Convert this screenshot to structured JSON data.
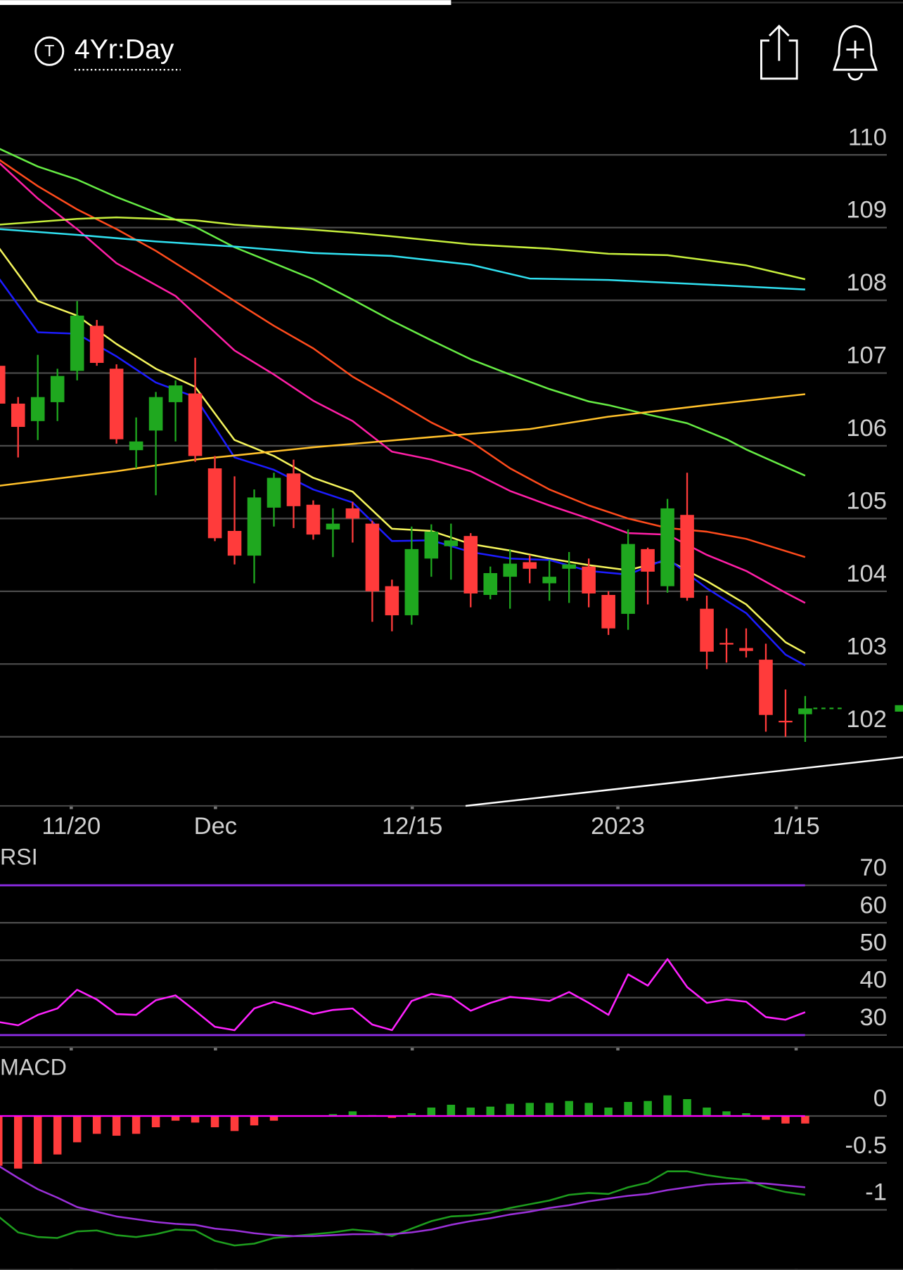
{
  "header": {
    "symbol_icon": "T",
    "timeframe": "4Yr:Day"
  },
  "chart_data": [
    {
      "type": "candlestick",
      "xlim": [
        0.08,
        45.97
      ],
      "ylim": [
        101.05,
        110.68
      ],
      "yticks": [
        102,
        103,
        104,
        105,
        106,
        107,
        108,
        109,
        110
      ],
      "xticks": [
        {
          "value": 3.7,
          "label": "11/20"
        },
        {
          "value": 11.03,
          "label": "Dec"
        },
        {
          "value": 21.03,
          "label": "12/15"
        },
        {
          "value": 31.48,
          "label": "2023"
        },
        {
          "value": 40.54,
          "label": "1/15"
        }
      ],
      "grid": true,
      "up_color": "#1fa81f",
      "down_color": "#ff3b3b",
      "x": [
        0,
        1,
        2,
        3,
        4,
        5,
        6,
        7,
        8,
        9,
        10,
        11,
        12,
        13,
        14,
        15,
        16,
        17,
        18,
        19,
        20,
        21,
        22,
        23,
        24,
        25,
        26,
        27,
        28,
        29,
        30,
        31,
        32,
        33,
        34,
        35,
        36,
        37,
        38,
        39,
        40,
        41
      ],
      "open": [
        107.1,
        106.58,
        106.34,
        106.6,
        107.03,
        107.65,
        107.06,
        105.94,
        106.21,
        106.6,
        106.72,
        105.69,
        104.83,
        104.49,
        105.15,
        105.62,
        105.19,
        104.85,
        105.14,
        104.93,
        104.07,
        103.67,
        104.45,
        104.62,
        104.76,
        103.95,
        104.2,
        104.4,
        104.11,
        104.31,
        104.34,
        103.95,
        103.69,
        104.58,
        104.07,
        105.05,
        103.76,
        103.29,
        103.22,
        103.06,
        102.22,
        102.31
      ],
      "high": [
        107.2,
        106.67,
        107.25,
        107.06,
        107.99,
        107.73,
        107.12,
        106.39,
        106.74,
        106.9,
        107.21,
        105.86,
        105.58,
        105.4,
        105.63,
        105.81,
        105.25,
        105.14,
        105.23,
        104.97,
        104.16,
        104.89,
        104.92,
        104.93,
        104.8,
        104.34,
        104.58,
        104.5,
        104.43,
        104.54,
        104.45,
        104.0,
        104.85,
        104.6,
        105.27,
        105.63,
        103.94,
        103.49,
        103.49,
        103.28,
        102.65,
        102.56
      ],
      "low": [
        105.45,
        105.84,
        106.08,
        106.34,
        106.9,
        107.1,
        106.03,
        105.69,
        105.32,
        106.06,
        105.78,
        104.69,
        104.37,
        104.11,
        104.89,
        104.87,
        104.71,
        104.47,
        104.67,
        103.58,
        103.45,
        103.54,
        104.2,
        104.16,
        103.78,
        103.89,
        103.76,
        104.11,
        103.87,
        103.84,
        103.78,
        103.4,
        103.47,
        103.82,
        103.98,
        103.87,
        102.93,
        103.02,
        103.09,
        102.07,
        102.0,
        101.93
      ],
      "close": [
        106.58,
        106.26,
        106.67,
        106.96,
        107.79,
        107.14,
        106.09,
        106.06,
        106.67,
        106.83,
        105.86,
        104.73,
        104.49,
        105.29,
        105.56,
        105.17,
        104.78,
        104.93,
        105.0,
        104.0,
        103.67,
        104.58,
        104.82,
        104.7,
        103.97,
        104.25,
        104.38,
        104.31,
        104.2,
        104.37,
        103.97,
        103.49,
        104.65,
        104.27,
        105.14,
        103.91,
        103.17,
        103.27,
        103.18,
        102.3,
        102.2,
        102.39
      ],
      "lines": [
        {
          "color": "#f4f45c",
          "x": [
            0,
            2,
            4,
            6,
            8,
            10,
            12,
            14,
            16,
            18,
            20,
            22,
            24,
            26,
            28,
            30,
            32,
            34,
            36,
            38,
            40,
            41
          ],
          "values": [
            108.73,
            107.99,
            107.79,
            107.4,
            107.06,
            106.81,
            106.08,
            105.86,
            105.56,
            105.37,
            104.86,
            104.83,
            104.65,
            104.56,
            104.45,
            104.36,
            104.29,
            104.43,
            104.14,
            103.82,
            103.3,
            103.15
          ]
        },
        {
          "color": "#1c1cff",
          "x": [
            0,
            2,
            4,
            6,
            8,
            10,
            12,
            14,
            16,
            18,
            20,
            22,
            24,
            26,
            28,
            30,
            32,
            34,
            36,
            38,
            40,
            41
          ],
          "values": [
            108.31,
            107.56,
            107.54,
            107.23,
            106.87,
            106.67,
            105.84,
            105.67,
            105.4,
            105.22,
            104.69,
            104.7,
            104.54,
            104.45,
            104.43,
            104.28,
            104.23,
            104.45,
            104.04,
            103.7,
            103.13,
            102.98
          ]
        },
        {
          "color": "#ff1fa6",
          "x": [
            0,
            2,
            4,
            6,
            9,
            12,
            14,
            16,
            18,
            20,
            22,
            24,
            26,
            28,
            30,
            32,
            34,
            36,
            38,
            40,
            41
          ],
          "values": [
            109.9,
            109.4,
            108.98,
            108.51,
            108.06,
            107.31,
            106.98,
            106.62,
            106.34,
            105.92,
            105.81,
            105.65,
            105.38,
            105.18,
            105.0,
            104.8,
            104.78,
            104.5,
            104.28,
            103.98,
            103.84
          ]
        },
        {
          "color": "#ff4b1c",
          "x": [
            0,
            2,
            4,
            6,
            8,
            10,
            12,
            14,
            16,
            18,
            20,
            22,
            24,
            26,
            28,
            30,
            32,
            34,
            36,
            38,
            41
          ],
          "values": [
            109.94,
            109.57,
            109.25,
            108.98,
            108.68,
            108.34,
            107.99,
            107.65,
            107.34,
            106.95,
            106.64,
            106.32,
            106.06,
            105.69,
            105.4,
            105.18,
            105.0,
            104.87,
            104.82,
            104.72,
            104.47
          ]
        },
        {
          "color": "#66ec44",
          "x": [
            0,
            2,
            4,
            6,
            8,
            10,
            12,
            14,
            16,
            18,
            20,
            22,
            24,
            26,
            28,
            30,
            31,
            33,
            35,
            37,
            38,
            41
          ],
          "values": [
            110.09,
            109.84,
            109.66,
            109.42,
            109.21,
            109.01,
            108.73,
            108.51,
            108.29,
            108.01,
            107.72,
            107.45,
            107.19,
            106.98,
            106.78,
            106.61,
            106.56,
            106.43,
            106.31,
            106.09,
            105.95,
            105.59
          ]
        },
        {
          "color": "#c6ee3c",
          "x": [
            0,
            4,
            6,
            10,
            12,
            16,
            18,
            20,
            24,
            28,
            31,
            34,
            36,
            38,
            41
          ],
          "values": [
            109.04,
            109.12,
            109.14,
            109.1,
            109.04,
            108.97,
            108.93,
            108.88,
            108.77,
            108.71,
            108.64,
            108.62,
            108.55,
            108.48,
            108.29
          ]
        },
        {
          "color": "#30e0f0",
          "x": [
            0,
            4,
            8,
            12,
            16,
            20,
            24,
            27,
            31,
            35,
            38,
            41
          ],
          "values": [
            108.98,
            108.9,
            108.81,
            108.74,
            108.65,
            108.61,
            108.49,
            108.3,
            108.28,
            108.23,
            108.19,
            108.15
          ]
        },
        {
          "color": "#ffc02a",
          "x": [
            0,
            6,
            10,
            16,
            22,
            27,
            31,
            36,
            41
          ],
          "values": [
            105.45,
            105.65,
            105.81,
            105.98,
            106.12,
            106.23,
            106.4,
            106.56,
            106.71
          ]
        },
        {
          "color": "#ffffff",
          "x": [
            23.74,
            45.97
          ],
          "values": [
            101.05,
            101.72
          ]
        }
      ]
    },
    {
      "type": "line",
      "title": "RSI",
      "xlim": [
        0.08,
        45.97
      ],
      "ylim": [
        26.76,
        80.4
      ],
      "yticks": [
        30,
        40,
        50,
        60,
        70
      ],
      "levels": [
        70,
        30
      ],
      "level_color": "#8a2be2",
      "color": "#ff22ff",
      "x": [
        0,
        1,
        2,
        3,
        4,
        5,
        6,
        7,
        8,
        9,
        10,
        11,
        12,
        13,
        14,
        15,
        16,
        17,
        18,
        19,
        20,
        21,
        22,
        23,
        24,
        25,
        26,
        27,
        28,
        29,
        30,
        31,
        32,
        33,
        34,
        35,
        36,
        37,
        38,
        39,
        40,
        41
      ],
      "values": [
        33.5,
        32.6,
        35.4,
        37.1,
        42.1,
        39.5,
        35.6,
        35.4,
        39.3,
        40.6,
        36.5,
        32.2,
        31.3,
        37.1,
        38.9,
        37.4,
        35.6,
        36.7,
        37.1,
        32.8,
        31.3,
        39.1,
        41.0,
        40.2,
        36.5,
        38.6,
        40.2,
        39.7,
        39.1,
        41.5,
        38.6,
        35.4,
        46.2,
        43.2,
        50.3,
        42.8,
        38.6,
        39.5,
        38.9,
        34.8,
        34.1,
        36.1
      ]
    },
    {
      "type": "macd",
      "title": "MACD",
      "xlim": [
        0.08,
        45.97
      ],
      "ylim": [
        -1.64,
        0.63
      ],
      "yticks": [
        0,
        -0.5,
        -1
      ],
      "zero_color": "#ff00ff",
      "up_color": "#1fa81f",
      "down_color": "#ff3b3b",
      "x": [
        0,
        1,
        2,
        3,
        4,
        5,
        6,
        7,
        8,
        9,
        10,
        11,
        12,
        13,
        14,
        15,
        16,
        17,
        18,
        19,
        20,
        21,
        22,
        23,
        24,
        25,
        26,
        27,
        28,
        29,
        30,
        31,
        32,
        33,
        34,
        35,
        36,
        37,
        38,
        39,
        40,
        41
      ],
      "histogram": [
        -0.53,
        -0.56,
        -0.51,
        -0.41,
        -0.28,
        -0.19,
        -0.21,
        -0.19,
        -0.12,
        -0.05,
        -0.07,
        -0.12,
        -0.16,
        -0.1,
        -0.05,
        0,
        0,
        0.02,
        0.05,
        0.01,
        -0.02,
        0.03,
        0.09,
        0.12,
        0.09,
        0.1,
        0.13,
        0.14,
        0.14,
        0.16,
        0.14,
        0.09,
        0.15,
        0.16,
        0.22,
        0.18,
        0.09,
        0.05,
        0.03,
        -0.04,
        -0.08,
        -0.08
      ],
      "series": [
        {
          "color": "#1e9e1e",
          "values": [
            -1.07,
            -1.24,
            -1.29,
            -1.3,
            -1.23,
            -1.22,
            -1.27,
            -1.29,
            -1.26,
            -1.21,
            -1.22,
            -1.33,
            -1.38,
            -1.36,
            -1.3,
            -1.28,
            -1.26,
            -1.24,
            -1.21,
            -1.23,
            -1.28,
            -1.2,
            -1.12,
            -1.07,
            -1.06,
            -1.03,
            -0.98,
            -0.94,
            -0.9,
            -0.84,
            -0.82,
            -0.83,
            -0.76,
            -0.71,
            -0.59,
            -0.59,
            -0.63,
            -0.66,
            -0.68,
            -0.76,
            -0.81,
            -0.84
          ]
        },
        {
          "color": "#9b30d9",
          "values": [
            -0.53,
            -0.66,
            -0.78,
            -0.87,
            -0.97,
            -1.02,
            -1.07,
            -1.1,
            -1.13,
            -1.15,
            -1.16,
            -1.2,
            -1.22,
            -1.25,
            -1.27,
            -1.28,
            -1.28,
            -1.27,
            -1.26,
            -1.26,
            -1.26,
            -1.24,
            -1.21,
            -1.16,
            -1.12,
            -1.09,
            -1.05,
            -1.02,
            -0.98,
            -0.95,
            -0.91,
            -0.88,
            -0.85,
            -0.83,
            -0.79,
            -0.76,
            -0.73,
            -0.72,
            -0.71,
            -0.72,
            -0.74,
            -0.76
          ]
        }
      ]
    }
  ]
}
